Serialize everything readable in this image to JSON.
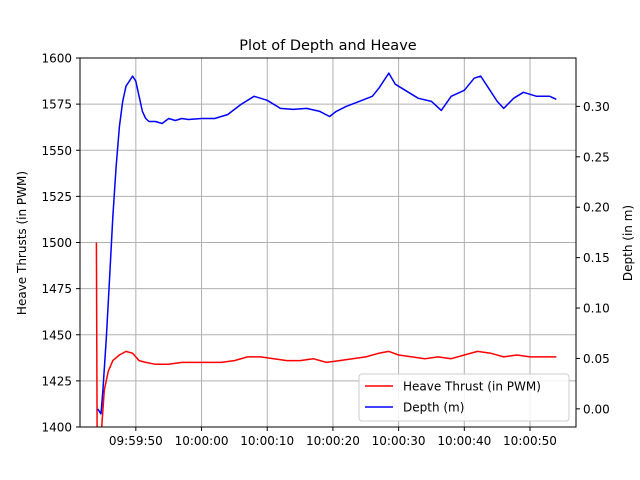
{
  "chart_data": {
    "type": "line",
    "title": "Plot of Depth and Heave",
    "xlabel": "",
    "ylabel_left": "Heave Thrusts (in PWM)",
    "ylabel_right": "Depth (in m)",
    "x_ticks": [
      "09:59:50",
      "10:00:00",
      "10:00:10",
      "10:00:20",
      "10:00:30",
      "10:00:40",
      "10:00:50"
    ],
    "x_tick_seconds": [
      -10,
      0,
      10,
      20,
      30,
      40,
      50
    ],
    "xlim_seconds": [
      -18.5,
      57
    ],
    "y_left_ticks": [
      "1400",
      "1425",
      "1450",
      "1475",
      "1500",
      "1525",
      "1550",
      "1575",
      "1600"
    ],
    "y_left_lim": [
      1400,
      1600
    ],
    "y_right_ticks": [
      "0.00",
      "0.05",
      "0.10",
      "0.15",
      "0.20",
      "0.25",
      "0.30"
    ],
    "y_right_lim": [
      -0.018,
      0.348
    ],
    "grid": true,
    "legend_position": "lower-right",
    "series": [
      {
        "name": "Heave Thrust (in PWM)",
        "color": "#ff0000",
        "axis": "left",
        "points": [
          [
            -16.0,
            1500
          ],
          [
            -15.9,
            1400
          ],
          [
            -15.5,
            1380
          ],
          [
            -15.2,
            1400
          ],
          [
            -14.8,
            1420
          ],
          [
            -14.2,
            1430
          ],
          [
            -13.5,
            1436
          ],
          [
            -12.5,
            1439
          ],
          [
            -11.5,
            1441
          ],
          [
            -10.5,
            1440
          ],
          [
            -9.5,
            1436
          ],
          [
            -8.5,
            1435
          ],
          [
            -7.0,
            1434
          ],
          [
            -5.0,
            1434
          ],
          [
            -3.0,
            1435
          ],
          [
            0,
            1435
          ],
          [
            3,
            1435
          ],
          [
            5,
            1436
          ],
          [
            7,
            1438
          ],
          [
            9,
            1438
          ],
          [
            11,
            1437
          ],
          [
            13,
            1436
          ],
          [
            15,
            1436
          ],
          [
            17,
            1437
          ],
          [
            19,
            1435
          ],
          [
            21,
            1436
          ],
          [
            23,
            1437
          ],
          [
            25,
            1438
          ],
          [
            27,
            1440
          ],
          [
            28.5,
            1441
          ],
          [
            30,
            1439
          ],
          [
            32,
            1438
          ],
          [
            34,
            1437
          ],
          [
            36,
            1438
          ],
          [
            38,
            1437
          ],
          [
            40,
            1439
          ],
          [
            42,
            1441
          ],
          [
            44,
            1440
          ],
          [
            46,
            1438
          ],
          [
            48,
            1439
          ],
          [
            50,
            1438
          ],
          [
            52,
            1438
          ],
          [
            54,
            1438
          ]
        ]
      },
      {
        "name": "Depth (m)",
        "color": "#0000ff",
        "axis": "right",
        "points": [
          [
            -15.8,
            0.0
          ],
          [
            -15.3,
            -0.005
          ],
          [
            -15.0,
            0.02
          ],
          [
            -14.5,
            0.07
          ],
          [
            -14.0,
            0.13
          ],
          [
            -13.5,
            0.19
          ],
          [
            -13.0,
            0.24
          ],
          [
            -12.5,
            0.28
          ],
          [
            -12.0,
            0.305
          ],
          [
            -11.5,
            0.32
          ],
          [
            -11.0,
            0.325
          ],
          [
            -10.5,
            0.33
          ],
          [
            -10.0,
            0.325
          ],
          [
            -9.5,
            0.31
          ],
          [
            -9.0,
            0.295
          ],
          [
            -8.5,
            0.288
          ],
          [
            -8.0,
            0.285
          ],
          [
            -7.0,
            0.285
          ],
          [
            -6.0,
            0.283
          ],
          [
            -5.0,
            0.288
          ],
          [
            -4.0,
            0.286
          ],
          [
            -3.0,
            0.288
          ],
          [
            -2.0,
            0.287
          ],
          [
            0.0,
            0.288
          ],
          [
            2.0,
            0.288
          ],
          [
            4.0,
            0.292
          ],
          [
            6.0,
            0.302
          ],
          [
            8.0,
            0.31
          ],
          [
            10.0,
            0.306
          ],
          [
            12.0,
            0.298
          ],
          [
            14.0,
            0.297
          ],
          [
            16.0,
            0.298
          ],
          [
            18.0,
            0.295
          ],
          [
            19.5,
            0.29
          ],
          [
            20.5,
            0.295
          ],
          [
            22.0,
            0.3
          ],
          [
            24.0,
            0.305
          ],
          [
            26.0,
            0.31
          ],
          [
            27.0,
            0.318
          ],
          [
            28.5,
            0.333
          ],
          [
            29.5,
            0.322
          ],
          [
            31.0,
            0.316
          ],
          [
            33.0,
            0.308
          ],
          [
            35.0,
            0.305
          ],
          [
            36.5,
            0.296
          ],
          [
            38.0,
            0.31
          ],
          [
            40.0,
            0.316
          ],
          [
            41.5,
            0.328
          ],
          [
            42.5,
            0.33
          ],
          [
            43.5,
            0.32
          ],
          [
            45.0,
            0.305
          ],
          [
            46.0,
            0.298
          ],
          [
            47.5,
            0.308
          ],
          [
            49.0,
            0.314
          ],
          [
            51.0,
            0.31
          ],
          [
            53.0,
            0.31
          ],
          [
            54.0,
            0.307
          ]
        ]
      }
    ]
  }
}
